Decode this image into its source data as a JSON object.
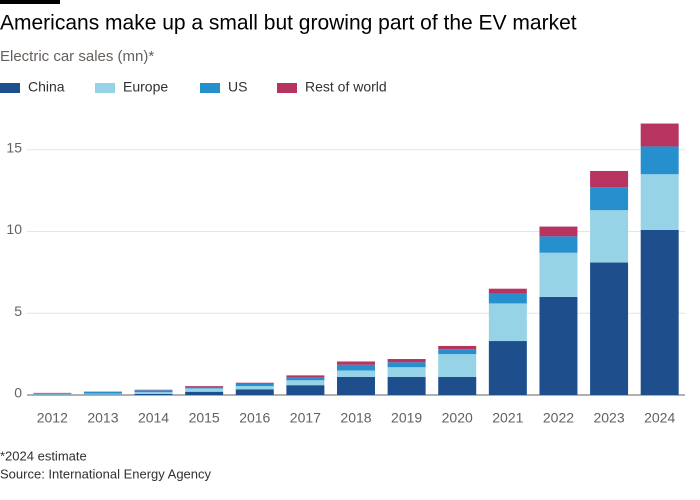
{
  "chart_data": {
    "type": "stacked_bar",
    "title": "Americans make up a small but growing part of the EV market",
    "subtitle": "Electric car sales (mn)*",
    "categories": [
      "2012",
      "2013",
      "2014",
      "2015",
      "2016",
      "2017",
      "2018",
      "2019",
      "2020",
      "2021",
      "2022",
      "2023",
      "2024"
    ],
    "series": [
      {
        "name": "China",
        "color": "#1e4f8c",
        "values": [
          0.02,
          0.02,
          0.07,
          0.2,
          0.35,
          0.6,
          1.1,
          1.1,
          1.1,
          3.3,
          6.0,
          8.1,
          10.1
        ]
      },
      {
        "name": "Europe",
        "color": "#97d3e6",
        "values": [
          0.05,
          0.07,
          0.1,
          0.2,
          0.2,
          0.3,
          0.4,
          0.6,
          1.4,
          2.3,
          2.7,
          3.2,
          3.4
        ]
      },
      {
        "name": "US",
        "color": "#2690cf",
        "values": [
          0.05,
          0.1,
          0.12,
          0.1,
          0.15,
          0.2,
          0.35,
          0.3,
          0.3,
          0.6,
          1.0,
          1.4,
          1.7
        ]
      },
      {
        "name": "Rest of world",
        "color": "#b73461",
        "values": [
          0.01,
          0.02,
          0.03,
          0.05,
          0.05,
          0.1,
          0.2,
          0.2,
          0.2,
          0.3,
          0.6,
          1.0,
          1.4
        ]
      }
    ],
    "ylim": [
      0,
      17
    ],
    "yticks": [
      0,
      5,
      10,
      15
    ],
    "grid": true,
    "footnote": "*2024 estimate",
    "source": "Source: International Energy Agency"
  }
}
